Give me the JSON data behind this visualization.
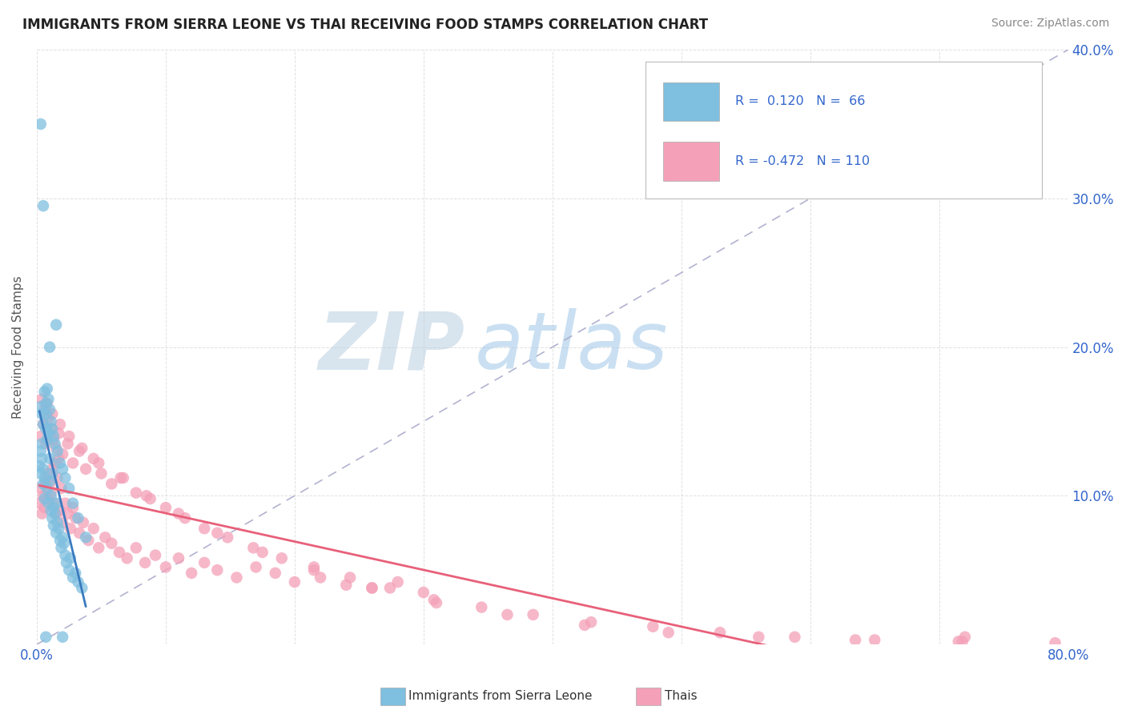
{
  "title": "IMMIGRANTS FROM SIERRA LEONE VS THAI RECEIVING FOOD STAMPS CORRELATION CHART",
  "source": "Source: ZipAtlas.com",
  "ylabel": "Receiving Food Stamps",
  "xlim": [
    0.0,
    0.8
  ],
  "ylim": [
    0.0,
    0.4
  ],
  "color_sierra": "#7fbfdf",
  "color_thai": "#f4a0b8",
  "color_sierra_line": "#3a7bbf",
  "color_thai_line": "#e8607a",
  "color_ref_line": "#aaaacc",
  "background_color": "#ffffff",
  "legend_text_color": "#3366cc",
  "axis_label_color": "#3366cc",
  "sierra_leone_x": [
    0.002,
    0.003,
    0.003,
    0.004,
    0.004,
    0.005,
    0.005,
    0.006,
    0.006,
    0.007,
    0.007,
    0.008,
    0.008,
    0.009,
    0.009,
    0.01,
    0.01,
    0.011,
    0.011,
    0.012,
    0.012,
    0.013,
    0.013,
    0.014,
    0.015,
    0.015,
    0.016,
    0.017,
    0.018,
    0.019,
    0.02,
    0.021,
    0.022,
    0.023,
    0.025,
    0.026,
    0.028,
    0.03,
    0.032,
    0.035,
    0.003,
    0.004,
    0.005,
    0.006,
    0.007,
    0.008,
    0.009,
    0.01,
    0.011,
    0.012,
    0.013,
    0.014,
    0.016,
    0.018,
    0.02,
    0.022,
    0.025,
    0.028,
    0.032,
    0.038,
    0.003,
    0.005,
    0.007,
    0.01,
    0.015,
    0.02
  ],
  "sierra_leone_y": [
    0.12,
    0.13,
    0.115,
    0.125,
    0.135,
    0.118,
    0.108,
    0.112,
    0.098,
    0.145,
    0.155,
    0.138,
    0.105,
    0.142,
    0.095,
    0.11,
    0.125,
    0.09,
    0.1,
    0.115,
    0.085,
    0.092,
    0.08,
    0.088,
    0.095,
    0.075,
    0.082,
    0.078,
    0.07,
    0.065,
    0.072,
    0.068,
    0.06,
    0.055,
    0.05,
    0.058,
    0.045,
    0.048,
    0.042,
    0.038,
    0.16,
    0.155,
    0.148,
    0.17,
    0.162,
    0.172,
    0.165,
    0.158,
    0.15,
    0.145,
    0.14,
    0.135,
    0.13,
    0.122,
    0.118,
    0.112,
    0.105,
    0.095,
    0.085,
    0.072,
    0.35,
    0.295,
    0.005,
    0.2,
    0.215,
    0.005
  ],
  "thai_x": [
    0.002,
    0.003,
    0.004,
    0.005,
    0.006,
    0.007,
    0.008,
    0.009,
    0.01,
    0.011,
    0.012,
    0.013,
    0.014,
    0.015,
    0.016,
    0.017,
    0.018,
    0.019,
    0.02,
    0.022,
    0.024,
    0.026,
    0.028,
    0.03,
    0.033,
    0.036,
    0.04,
    0.044,
    0.048,
    0.053,
    0.058,
    0.064,
    0.07,
    0.077,
    0.084,
    0.092,
    0.1,
    0.11,
    0.12,
    0.13,
    0.14,
    0.155,
    0.17,
    0.185,
    0.2,
    0.22,
    0.24,
    0.26,
    0.28,
    0.3,
    0.003,
    0.005,
    0.007,
    0.009,
    0.011,
    0.013,
    0.015,
    0.017,
    0.02,
    0.024,
    0.028,
    0.033,
    0.038,
    0.044,
    0.05,
    0.058,
    0.067,
    0.077,
    0.088,
    0.1,
    0.115,
    0.13,
    0.148,
    0.168,
    0.19,
    0.215,
    0.243,
    0.274,
    0.308,
    0.345,
    0.385,
    0.43,
    0.478,
    0.53,
    0.588,
    0.65,
    0.718,
    0.79,
    0.004,
    0.006,
    0.008,
    0.012,
    0.018,
    0.025,
    0.035,
    0.048,
    0.065,
    0.085,
    0.11,
    0.14,
    0.175,
    0.215,
    0.26,
    0.31,
    0.365,
    0.425,
    0.49,
    0.56,
    0.635,
    0.715,
    0.72
  ],
  "thai_y": [
    0.095,
    0.105,
    0.088,
    0.1,
    0.092,
    0.11,
    0.098,
    0.115,
    0.108,
    0.102,
    0.118,
    0.095,
    0.122,
    0.088,
    0.112,
    0.125,
    0.09,
    0.105,
    0.082,
    0.095,
    0.088,
    0.078,
    0.092,
    0.085,
    0.075,
    0.082,
    0.07,
    0.078,
    0.065,
    0.072,
    0.068,
    0.062,
    0.058,
    0.065,
    0.055,
    0.06,
    0.052,
    0.058,
    0.048,
    0.055,
    0.05,
    0.045,
    0.052,
    0.048,
    0.042,
    0.045,
    0.04,
    0.038,
    0.042,
    0.035,
    0.14,
    0.148,
    0.135,
    0.152,
    0.145,
    0.138,
    0.132,
    0.142,
    0.128,
    0.135,
    0.122,
    0.13,
    0.118,
    0.125,
    0.115,
    0.108,
    0.112,
    0.102,
    0.098,
    0.092,
    0.085,
    0.078,
    0.072,
    0.065,
    0.058,
    0.052,
    0.045,
    0.038,
    0.03,
    0.025,
    0.02,
    0.015,
    0.012,
    0.008,
    0.005,
    0.003,
    0.002,
    0.001,
    0.165,
    0.158,
    0.162,
    0.155,
    0.148,
    0.14,
    0.132,
    0.122,
    0.112,
    0.1,
    0.088,
    0.075,
    0.062,
    0.05,
    0.038,
    0.028,
    0.02,
    0.013,
    0.008,
    0.005,
    0.003,
    0.002,
    0.005
  ]
}
